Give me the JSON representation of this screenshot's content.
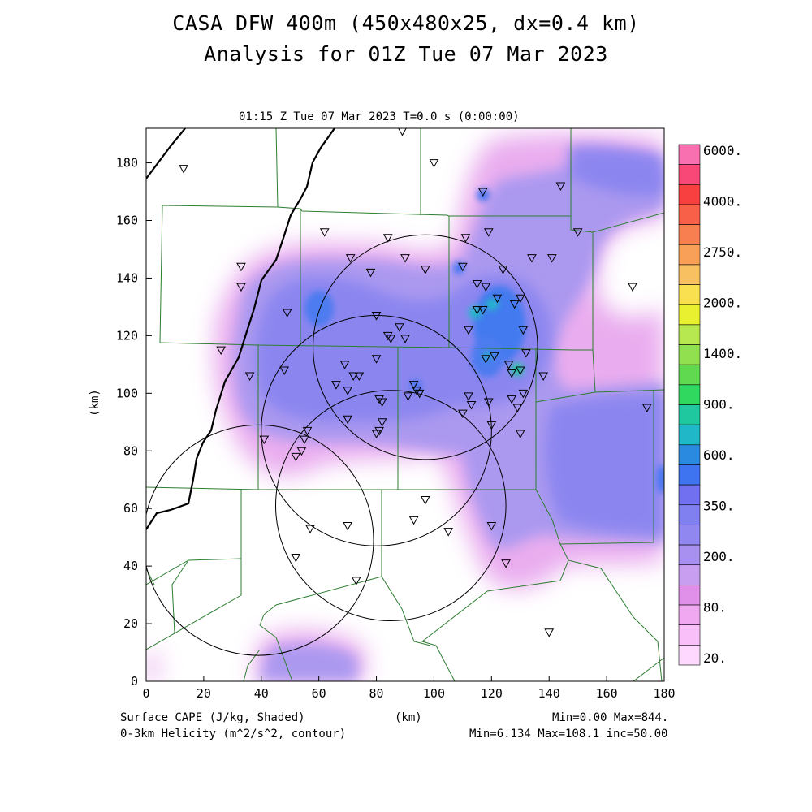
{
  "title_line1": "CASA DFW 400m (450x480x25, dx=0.4 km)",
  "title_line2": "Analysis for 01Z Tue 07 Mar 2023",
  "subtitle": "01:15 Z Tue 07 Mar 2023    T=0.0 s (0:00:00)",
  "footer": {
    "left1": "Surface CAPE (J/kg, Shaded)",
    "left2": "0-3km Helicity (m^2/s^2, contour)",
    "center": "(km)",
    "right1": "Min=0.00 Max=844.",
    "right2": "Min=6.134 Max=108.1 inc=50.00"
  },
  "colors": {
    "axis": "#000000",
    "county_lines": "#2e7d32",
    "colorbar": [
      "#ffd8ff",
      "#f8bff8",
      "#f0a8f0",
      "#e090e8",
      "#c89ef0",
      "#a890f0",
      "#9088f0",
      "#8080f0",
      "#7070f0",
      "#3f74f0",
      "#2a8ae0",
      "#20b8c8",
      "#20c8a0",
      "#30d860",
      "#60d850",
      "#90e050",
      "#b8e850",
      "#e8f030",
      "#f8e050",
      "#f8c060",
      "#f8a058",
      "#f88050",
      "#f86048",
      "#f84040",
      "#f84878",
      "#f870b0"
    ]
  },
  "chart_data": {
    "type": "heatmap",
    "title": "Surface CAPE (J/kg, Shaded)",
    "xlabel": "(km)",
    "ylabel": "(km)",
    "xlim": [
      0,
      180
    ],
    "ylim": [
      0,
      192
    ],
    "xticks": [
      0,
      20,
      40,
      60,
      80,
      100,
      120,
      140,
      160,
      180
    ],
    "yticks": [
      0,
      20,
      40,
      60,
      80,
      100,
      120,
      140,
      160,
      180
    ],
    "grid": false,
    "colorbar_labels": [
      "6000.",
      "4000.",
      "2750.",
      "2000.",
      "1400.",
      "900.",
      "600.",
      "350.",
      "200.",
      "80.",
      "20."
    ],
    "cape_min": 0.0,
    "cape_max": 844,
    "helicity_min": 6.134,
    "helicity_max": 108.1,
    "helicity_inc": 50.0,
    "radar_circles": [
      {
        "cx": 97,
        "cy": 116,
        "r": 39
      },
      {
        "cx": 80,
        "cy": 87,
        "r": 40
      },
      {
        "cx": 39,
        "cy": 49,
        "r": 40
      },
      {
        "cx": 85,
        "cy": 61,
        "r": 40
      }
    ],
    "stations": [
      [
        13,
        178
      ],
      [
        89,
        191
      ],
      [
        100,
        180
      ],
      [
        117,
        170
      ],
      [
        144,
        172
      ],
      [
        150,
        156
      ],
      [
        62,
        156
      ],
      [
        84,
        154
      ],
      [
        111,
        154
      ],
      [
        119,
        156
      ],
      [
        33,
        144
      ],
      [
        33,
        137
      ],
      [
        71,
        147
      ],
      [
        78,
        142
      ],
      [
        90,
        147
      ],
      [
        97,
        143
      ],
      [
        110,
        144
      ],
      [
        115,
        138
      ],
      [
        118,
        137
      ],
      [
        122,
        133
      ],
      [
        128,
        131
      ],
      [
        130,
        133
      ],
      [
        124,
        143
      ],
      [
        134,
        147
      ],
      [
        141,
        147
      ],
      [
        169,
        137
      ],
      [
        49,
        128
      ],
      [
        80,
        127
      ],
      [
        88,
        123
      ],
      [
        85,
        119
      ],
      [
        90,
        119
      ],
      [
        84,
        120
      ],
      [
        112,
        122
      ],
      [
        115,
        129
      ],
      [
        117,
        129
      ],
      [
        131,
        122
      ],
      [
        26,
        115
      ],
      [
        36,
        106
      ],
      [
        48,
        108
      ],
      [
        66,
        103
      ],
      [
        69,
        110
      ],
      [
        72,
        106
      ],
      [
        80,
        112
      ],
      [
        118,
        112
      ],
      [
        121,
        113
      ],
      [
        126,
        110
      ],
      [
        127,
        107
      ],
      [
        130,
        108
      ],
      [
        132,
        114
      ],
      [
        138,
        106
      ],
      [
        70,
        101
      ],
      [
        74,
        106
      ],
      [
        81,
        98
      ],
      [
        82,
        97
      ],
      [
        91,
        99
      ],
      [
        93,
        103
      ],
      [
        94,
        101
      ],
      [
        95,
        100
      ],
      [
        112,
        99
      ],
      [
        119,
        97
      ],
      [
        127,
        98
      ],
      [
        131,
        100
      ],
      [
        174,
        95
      ],
      [
        70,
        91
      ],
      [
        80,
        86
      ],
      [
        81,
        87
      ],
      [
        82,
        90
      ],
      [
        110,
        93
      ],
      [
        113,
        96
      ],
      [
        120,
        89
      ],
      [
        129,
        95
      ],
      [
        130,
        86
      ],
      [
        41,
        84
      ],
      [
        52,
        78
      ],
      [
        54,
        80
      ],
      [
        55,
        84
      ],
      [
        56,
        87
      ],
      [
        97,
        63
      ],
      [
        57,
        53
      ],
      [
        70,
        54
      ],
      [
        93,
        56
      ],
      [
        105,
        52
      ],
      [
        120,
        54
      ],
      [
        125,
        41
      ],
      [
        52,
        43
      ],
      [
        73,
        35
      ],
      [
        140,
        17
      ]
    ]
  }
}
